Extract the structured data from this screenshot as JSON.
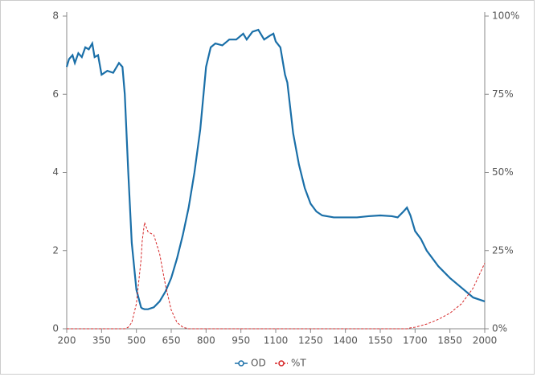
{
  "chart_data": {
    "type": "line",
    "x": [
      200,
      210,
      225,
      235,
      250,
      265,
      280,
      295,
      310,
      320,
      335,
      350,
      375,
      400,
      425,
      440,
      450,
      465,
      480,
      500,
      520,
      525,
      535,
      540,
      550,
      575,
      600,
      625,
      650,
      675,
      700,
      725,
      750,
      775,
      800,
      820,
      840,
      870,
      900,
      930,
      960,
      975,
      1000,
      1025,
      1050,
      1075,
      1090,
      1100,
      1120,
      1140,
      1150,
      1175,
      1200,
      1225,
      1250,
      1275,
      1300,
      1350,
      1400,
      1450,
      1500,
      1550,
      1600,
      1625,
      1650,
      1665,
      1680,
      1700,
      1725,
      1750,
      1800,
      1850,
      1900,
      1950,
      2000
    ],
    "series": [
      {
        "name": "OD",
        "color": "#1a6fa8",
        "values": [
          6.7,
          6.9,
          7.0,
          6.8,
          7.05,
          6.95,
          7.2,
          7.15,
          7.3,
          6.95,
          7.0,
          6.5,
          6.6,
          6.55,
          6.8,
          6.7,
          6.0,
          4.0,
          2.2,
          1.0,
          0.55,
          0.52,
          0.5,
          0.5,
          0.5,
          0.55,
          0.7,
          0.95,
          1.3,
          1.8,
          2.4,
          3.1,
          4.0,
          5.1,
          6.7,
          7.2,
          7.3,
          7.25,
          7.4,
          7.4,
          7.55,
          7.4,
          7.6,
          7.65,
          7.4,
          7.5,
          7.55,
          7.35,
          7.2,
          6.5,
          6.3,
          5.0,
          4.2,
          3.6,
          3.2,
          3.0,
          2.9,
          2.85,
          2.85,
          2.85,
          2.88,
          2.9,
          2.88,
          2.85,
          3.0,
          3.1,
          2.9,
          2.5,
          2.3,
          2.0,
          1.6,
          1.3,
          1.05,
          0.8,
          0.7
        ]
      },
      {
        "name": "%T",
        "color": "#d62728",
        "axis": "y2",
        "dashed": true,
        "values": [
          0,
          0,
          0,
          0,
          0,
          0,
          0,
          0,
          0,
          0,
          0,
          0,
          0,
          0,
          0,
          0,
          0,
          0.5,
          2,
          8,
          22,
          28,
          34,
          33,
          31,
          30,
          24,
          14,
          6,
          2,
          0.5,
          0,
          0,
          0,
          0,
          0,
          0,
          0,
          0,
          0,
          0,
          0,
          0,
          0,
          0,
          0,
          0,
          0,
          0,
          0,
          0,
          0,
          0,
          0,
          0,
          0,
          0,
          0,
          0,
          0,
          0,
          0,
          0,
          0,
          0,
          0,
          0.3,
          0.5,
          1,
          1.5,
          3,
          5,
          8,
          13,
          21
        ]
      }
    ],
    "xlim": [
      200,
      2000
    ],
    "xticks": [
      200,
      350,
      500,
      650,
      800,
      950,
      1100,
      1250,
      1400,
      1550,
      1700,
      1850,
      2000
    ],
    "ylim": [
      0,
      8
    ],
    "yticks": [
      0,
      2,
      4,
      6,
      8
    ],
    "y2lim": [
      0,
      100
    ],
    "y2ticks": [
      {
        "value": 0,
        "label": "0%"
      },
      {
        "value": 25,
        "label": "25%"
      },
      {
        "value": 50,
        "label": "50%"
      },
      {
        "value": 75,
        "label": "75%"
      },
      {
        "value": 100,
        "label": "100%"
      }
    ],
    "legend": "bottom"
  }
}
